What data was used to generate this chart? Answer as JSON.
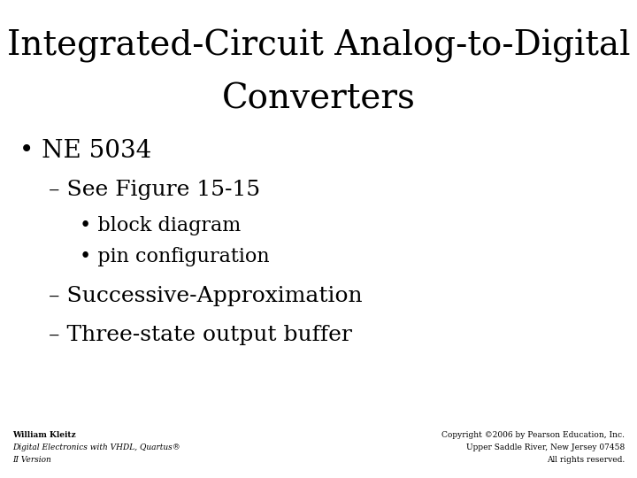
{
  "title_line1": "Integrated-Circuit Analog-to-Digital",
  "title_line2": "Converters",
  "bullet1": "NE 5034",
  "sub1": "– See Figure 15-15",
  "sub1a": "• block diagram",
  "sub1b": "• pin configuration",
  "sub2": "– Successive-Approximation",
  "sub3": "– Three-state output buffer",
  "footer_left_line1": "William Kleitz",
  "footer_left_line2": "Digital Electronics with VHDL, Quartus®",
  "footer_left_line3": "II Version",
  "footer_right_line1": "Copyright ©2006 by Pearson Education, Inc.",
  "footer_right_line2": "Upper Saddle River, New Jersey 07458",
  "footer_right_line3": "All rights reserved.",
  "bg_color": "#ffffff",
  "text_color": "#000000",
  "title_fontsize": 28,
  "bullet1_fontsize": 20,
  "sub_fontsize": 18,
  "subsub_fontsize": 16,
  "footer_fontsize": 6.5
}
